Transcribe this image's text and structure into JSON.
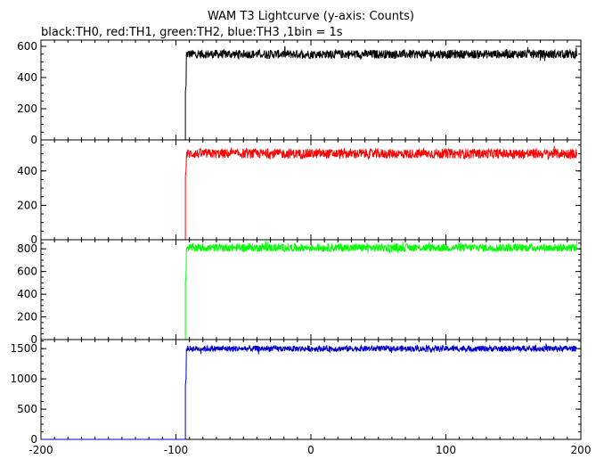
{
  "title": "WAM T3 Lightcurve (y-axis: Counts)",
  "subtitle": "black:TH0, red:TH1, green:TH2, blue:TH3 ,1bin = 1s",
  "chart_data": [
    {
      "type": "line",
      "series_color": "#000000",
      "xlim": [
        -200,
        200
      ],
      "ylim": [
        0,
        640
      ],
      "y_ticks": [
        0,
        200,
        400,
        600
      ],
      "x_ticks": [
        -200,
        -100,
        0,
        100,
        200
      ],
      "series": [
        {
          "trigger_time": -93,
          "pre_level": 0,
          "ramp": [
            [
              -93,
              310
            ],
            [
              -92.5,
              350
            ]
          ],
          "post_level": 550,
          "noise": 20,
          "x_end": 197
        }
      ]
    },
    {
      "type": "line",
      "series_color": "#ff0000",
      "xlim": [
        -200,
        200
      ],
      "ylim": [
        0,
        580
      ],
      "y_ticks": [
        0,
        200,
        400
      ],
      "x_ticks": [
        -200,
        -100,
        0,
        100,
        200
      ],
      "series": [
        {
          "trigger_time": -93,
          "pre_level": 0,
          "ramp": [
            [
              -93,
              370
            ],
            [
              -92.5,
              400
            ]
          ],
          "post_level": 500,
          "noise": 20,
          "x_end": 197
        }
      ]
    },
    {
      "type": "line",
      "series_color": "#00ff00",
      "xlim": [
        -200,
        200
      ],
      "ylim": [
        0,
        880
      ],
      "y_ticks": [
        0,
        200,
        400,
        600,
        800
      ],
      "x_ticks": [
        -200,
        -100,
        0,
        100,
        200
      ],
      "series": [
        {
          "trigger_time": -93,
          "pre_level": 0,
          "ramp": [
            [
              -93,
              510
            ],
            [
              -92.5,
              560
            ]
          ],
          "post_level": 810,
          "noise": 25,
          "x_end": 197
        }
      ]
    },
    {
      "type": "line",
      "series_color": "#0000cc",
      "xlim": [
        -200,
        200
      ],
      "ylim": [
        0,
        1650
      ],
      "y_ticks": [
        0,
        500,
        1000,
        1500
      ],
      "x_ticks": [
        -200,
        -100,
        0,
        100,
        200
      ],
      "series": [
        {
          "trigger_time": -93,
          "pre_level": 0,
          "ramp": [
            [
              -93,
              900
            ],
            [
              -92.5,
              1000
            ]
          ],
          "post_level": 1500,
          "noise": 35,
          "x_end": 197
        }
      ]
    }
  ]
}
